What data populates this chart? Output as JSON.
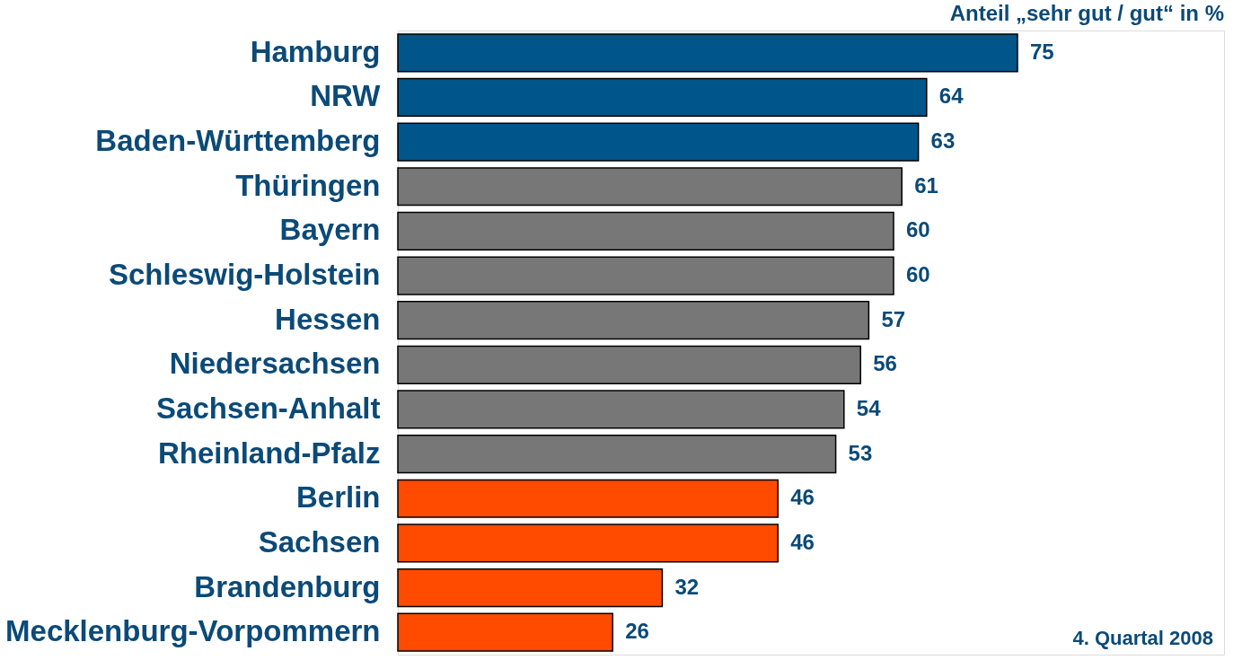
{
  "chart_data": {
    "type": "bar",
    "orientation": "horizontal",
    "title": "Anteil „sehr gut / gut“ in %",
    "categories": [
      "Hamburg",
      "NRW",
      "Baden-Württemberg",
      "Thüringen",
      "Bayern",
      "Schleswig-Holstein",
      "Hessen",
      "Niedersachsen",
      "Sachsen-Anhalt",
      "Rheinland-Pfalz",
      "Berlin",
      "Sachsen",
      "Brandenburg",
      "Mecklenburg-Vorpommern"
    ],
    "values": [
      75,
      64,
      63,
      61,
      60,
      60,
      57,
      56,
      54,
      53,
      46,
      46,
      32,
      26
    ],
    "colors": [
      "#00558a",
      "#00558a",
      "#00558a",
      "#777777",
      "#777777",
      "#777777",
      "#777777",
      "#777777",
      "#777777",
      "#777777",
      "#ff4b00",
      "#ff4b00",
      "#ff4b00",
      "#ff4b00"
    ],
    "xlim": [
      0,
      100
    ],
    "data_labels": true,
    "tick_labels": "y",
    "annotations": [
      "4. Quartal 2008"
    ]
  }
}
